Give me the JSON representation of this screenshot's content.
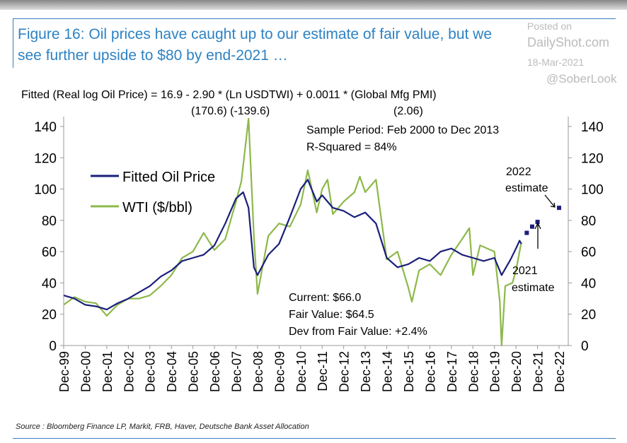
{
  "header": {
    "title": "Figure 16: Oil prices have caught up to our estimate of fair value, but we see further upside to $80 by end-2021 …",
    "watermark_posted": "Posted on",
    "watermark_site": "DailyShot.com",
    "watermark_date": "18-Mar-2021",
    "watermark_handle": "@SoberLook"
  },
  "source": "Source : Bloomberg Finance LP, Markit, FRB, Haver, Deutsche Bank Asset Allocation",
  "chart_data": {
    "type": "line",
    "equation": "Fitted (Real log Oil Price) = 16.9 - 2.90 * (Ln USDTWI) + 0.0011 * (Global Mfg PMI)",
    "tstats": [
      "(170.6) (-139.6)",
      "(2.06)"
    ],
    "annotations": {
      "sample": "Sample Period: Feb 2000 to Dec 2013",
      "rsq": "R-Squared = 84%",
      "current": "Current: $66.0",
      "fair": "Fair Value: $64.5",
      "dev": "Dev from Fair Value:  +2.4%",
      "est2022": [
        "2022",
        "estimate"
      ],
      "est2021": [
        "2021",
        "estimate"
      ]
    },
    "x_ticks": [
      "Dec-99",
      "Dec-00",
      "Dec-01",
      "Dec-02",
      "Dec-03",
      "Dec-04",
      "Dec-05",
      "Dec-06",
      "Dec-07",
      "Dec-08",
      "Dec-09",
      "Dec-10",
      "Dec-11",
      "Dec-12",
      "Dec-13",
      "Dec-14",
      "Dec-15",
      "Dec-16",
      "Dec-17",
      "Dec-18",
      "Dec-19",
      "Dec-20",
      "Dec-21",
      "Dec-22"
    ],
    "y_ticks": [
      0,
      20,
      40,
      60,
      80,
      100,
      120,
      140
    ],
    "ylim": [
      0,
      140
    ],
    "xlim": [
      "1999-12",
      "2022-12"
    ],
    "legend_placement": "upper-left",
    "series": [
      {
        "name": "Fitted Oil Price",
        "color": "#1a1f7a",
        "points": [
          [
            "1999-12",
            32
          ],
          [
            "2000-06",
            30
          ],
          [
            "2000-12",
            26
          ],
          [
            "2001-06",
            25
          ],
          [
            "2001-12",
            23
          ],
          [
            "2002-06",
            27
          ],
          [
            "2002-12",
            30
          ],
          [
            "2003-06",
            34
          ],
          [
            "2003-12",
            38
          ],
          [
            "2004-06",
            44
          ],
          [
            "2004-12",
            48
          ],
          [
            "2005-06",
            54
          ],
          [
            "2005-12",
            56
          ],
          [
            "2006-06",
            58
          ],
          [
            "2006-12",
            64
          ],
          [
            "2007-06",
            78
          ],
          [
            "2007-12",
            94
          ],
          [
            "2008-04",
            98
          ],
          [
            "2008-07",
            88
          ],
          [
            "2008-10",
            50
          ],
          [
            "2008-12",
            45
          ],
          [
            "2009-06",
            58
          ],
          [
            "2009-12",
            65
          ],
          [
            "2010-06",
            82
          ],
          [
            "2010-12",
            100
          ],
          [
            "2011-04",
            106
          ],
          [
            "2011-09",
            92
          ],
          [
            "2011-12",
            96
          ],
          [
            "2012-06",
            88
          ],
          [
            "2012-12",
            86
          ],
          [
            "2013-06",
            82
          ],
          [
            "2013-12",
            85
          ],
          [
            "2014-06",
            78
          ],
          [
            "2014-12",
            56
          ],
          [
            "2015-06",
            50
          ],
          [
            "2015-12",
            52
          ],
          [
            "2016-06",
            56
          ],
          [
            "2016-12",
            54
          ],
          [
            "2017-06",
            60
          ],
          [
            "2017-12",
            62
          ],
          [
            "2018-06",
            58
          ],
          [
            "2018-12",
            56
          ],
          [
            "2019-06",
            54
          ],
          [
            "2019-12",
            56
          ],
          [
            "2020-04",
            45
          ],
          [
            "2020-09",
            55
          ],
          [
            "2020-12",
            62
          ],
          [
            "2021-02",
            67
          ],
          [
            "2021-03",
            65
          ]
        ]
      },
      {
        "name": "WTI ($/bbl)",
        "color": "#8db84a",
        "points": [
          [
            "1999-12",
            26
          ],
          [
            "2000-06",
            31
          ],
          [
            "2000-12",
            28
          ],
          [
            "2001-06",
            27
          ],
          [
            "2001-12",
            19
          ],
          [
            "2002-06",
            26
          ],
          [
            "2002-12",
            30
          ],
          [
            "2003-06",
            30
          ],
          [
            "2003-12",
            32
          ],
          [
            "2004-06",
            38
          ],
          [
            "2004-12",
            45
          ],
          [
            "2005-06",
            56
          ],
          [
            "2005-12",
            60
          ],
          [
            "2006-06",
            72
          ],
          [
            "2006-12",
            61
          ],
          [
            "2007-06",
            68
          ],
          [
            "2007-12",
            92
          ],
          [
            "2008-03",
            105
          ],
          [
            "2008-07",
            145
          ],
          [
            "2008-10",
            70
          ],
          [
            "2008-12",
            33
          ],
          [
            "2009-06",
            70
          ],
          [
            "2009-12",
            78
          ],
          [
            "2010-06",
            76
          ],
          [
            "2010-12",
            90
          ],
          [
            "2011-04",
            112
          ],
          [
            "2011-09",
            85
          ],
          [
            "2011-12",
            100
          ],
          [
            "2012-03",
            106
          ],
          [
            "2012-06",
            84
          ],
          [
            "2012-12",
            92
          ],
          [
            "2013-06",
            98
          ],
          [
            "2013-09",
            108
          ],
          [
            "2013-12",
            98
          ],
          [
            "2014-06",
            106
          ],
          [
            "2014-12",
            55
          ],
          [
            "2015-06",
            60
          ],
          [
            "2015-12",
            37
          ],
          [
            "2016-02",
            28
          ],
          [
            "2016-06",
            48
          ],
          [
            "2016-12",
            52
          ],
          [
            "2017-06",
            45
          ],
          [
            "2017-12",
            58
          ],
          [
            "2018-06",
            68
          ],
          [
            "2018-10",
            75
          ],
          [
            "2018-12",
            45
          ],
          [
            "2019-04",
            64
          ],
          [
            "2019-12",
            60
          ],
          [
            "2020-03",
            28
          ],
          [
            "2020-04",
            0
          ],
          [
            "2020-06",
            38
          ],
          [
            "2020-10",
            40
          ],
          [
            "2020-12",
            48
          ],
          [
            "2021-03",
            66
          ]
        ]
      },
      {
        "name": "",
        "color": "#1a1f7a",
        "style": "markers",
        "points": [
          [
            "2021-06",
            72
          ],
          [
            "2021-09",
            76
          ],
          [
            "2021-12",
            79
          ],
          [
            "2022-12",
            88
          ]
        ]
      }
    ]
  }
}
